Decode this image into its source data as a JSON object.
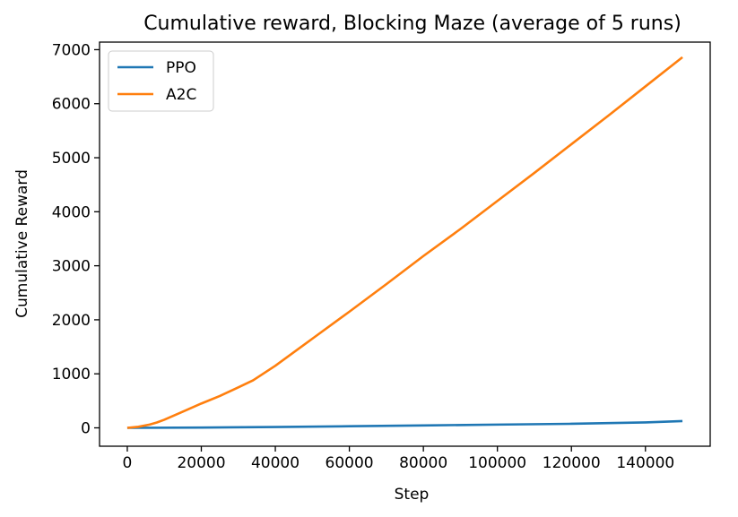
{
  "chart_data": {
    "type": "line",
    "title": "Cumulative reward, Blocking Maze (average of 5 runs)",
    "xlabel": "Step",
    "ylabel": "Cumulative Reward",
    "xlim": [
      -7500,
      157500
    ],
    "ylim": [
      -340,
      7140
    ],
    "xticks": [
      0,
      20000,
      40000,
      60000,
      80000,
      100000,
      120000,
      140000
    ],
    "xtick_labels": [
      "0",
      "20000",
      "40000",
      "60000",
      "80000",
      "100000",
      "120000",
      "140000"
    ],
    "yticks": [
      0,
      1000,
      2000,
      3000,
      4000,
      5000,
      6000,
      7000
    ],
    "ytick_labels": [
      "0",
      "1000",
      "2000",
      "3000",
      "4000",
      "5000",
      "6000",
      "7000"
    ],
    "legend_position": "top-left",
    "series": [
      {
        "name": "PPO",
        "color": "#1f77b4",
        "x": [
          0,
          20000,
          40000,
          60000,
          80000,
          100000,
          120000,
          140000,
          150000
        ],
        "y": [
          0,
          5,
          15,
          30,
          45,
          60,
          75,
          100,
          125
        ]
      },
      {
        "name": "A2C",
        "color": "#ff7f0e",
        "x": [
          0,
          3000,
          6000,
          8000,
          10000,
          15000,
          20000,
          25000,
          30000,
          34000,
          40000,
          50000,
          60000,
          70000,
          80000,
          90000,
          100000,
          110000,
          120000,
          130000,
          140000,
          150000
        ],
        "y": [
          0,
          20,
          60,
          100,
          150,
          300,
          450,
          590,
          750,
          880,
          1150,
          1650,
          2150,
          2660,
          3180,
          3680,
          4200,
          4720,
          5250,
          5780,
          6320,
          6860
        ]
      }
    ]
  }
}
